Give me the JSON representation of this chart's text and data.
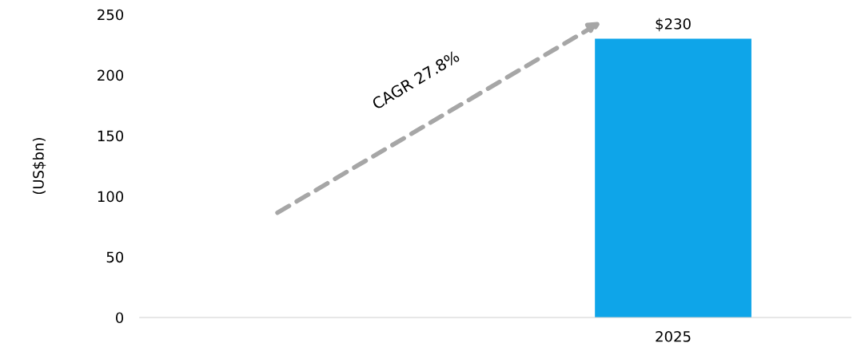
{
  "chart_data": {
    "type": "bar",
    "ylabel": "(US$bn)",
    "categories": [
      null,
      "2025"
    ],
    "series": [
      {
        "color": "#0ea5e9",
        "values": [
          null,
          230
        ],
        "value_labels": [
          null,
          "$230"
        ]
      }
    ],
    "ylim": [
      0,
      250
    ],
    "yticks": [
      0,
      50,
      100,
      150,
      200,
      250
    ],
    "grid": false,
    "legend": false,
    "annotations": [
      "CAGR 27.8%"
    ]
  }
}
